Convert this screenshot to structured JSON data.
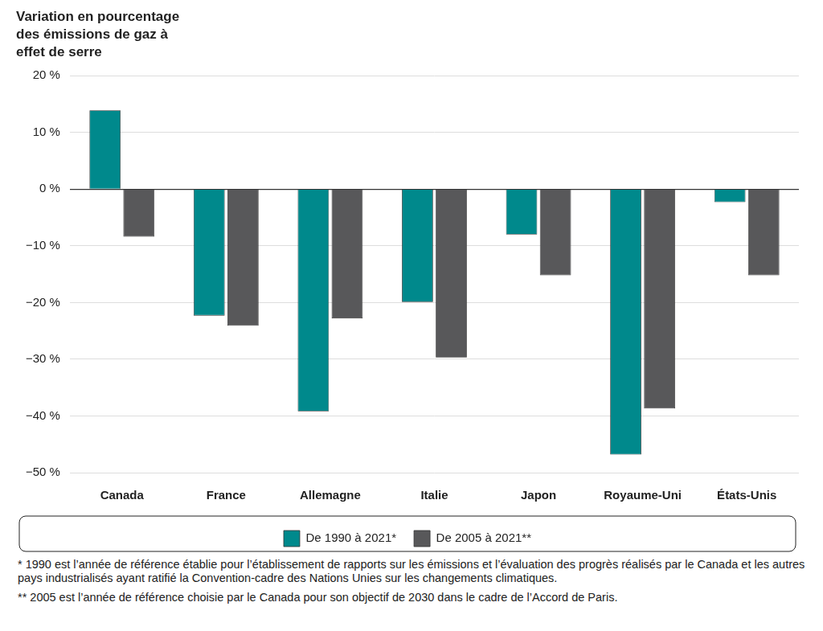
{
  "chart_data": {
    "type": "bar",
    "title": [
      "Variation en pourcentage",
      "des émissions de gaz à",
      "effet de serre"
    ],
    "categories": [
      "Canada",
      "France",
      "Allemagne",
      "Italie",
      "Japon",
      "Royaume-Uni",
      "États-Unis"
    ],
    "series": [
      {
        "name": "De 1990 à 2021*",
        "color": "#00898c",
        "values": [
          13.9,
          -22.3,
          -39.2,
          -19.9,
          -8.0,
          -46.8,
          -2.3
        ]
      },
      {
        "name": "De 2005 à 2021**",
        "color": "#58585a",
        "values": [
          -8.4,
          -24.1,
          -22.8,
          -29.7,
          -15.2,
          -38.7,
          -15.2
        ]
      }
    ],
    "ylim": [
      -50,
      20
    ],
    "yticks": [
      {
        "value": -50,
        "label": "−50 %"
      },
      {
        "value": -40,
        "label": "−40 %"
      },
      {
        "value": -30,
        "label": "−30 %"
      },
      {
        "value": -20,
        "label": "−20 %"
      },
      {
        "value": -10,
        "label": "−10 %"
      },
      {
        "value": 0,
        "label": "0 %"
      },
      {
        "value": 10,
        "label": "10 %"
      },
      {
        "value": 20,
        "label": "20 %"
      }
    ],
    "grid": true,
    "legend": "bottom",
    "notes": [
      "* 1990 est l’année de référence établie pour l’établissement de rapports sur les émissions et l’évaluation des progrès réalisés par le Canada et les autres pays industrialisés ayant ratifié la Convention-cadre des Nations Unies sur les changements climatiques.",
      "** 2005 est l’année de référence choisie par le Canada pour son objectif de 2030 dans le cadre de l’Accord de Paris."
    ]
  }
}
